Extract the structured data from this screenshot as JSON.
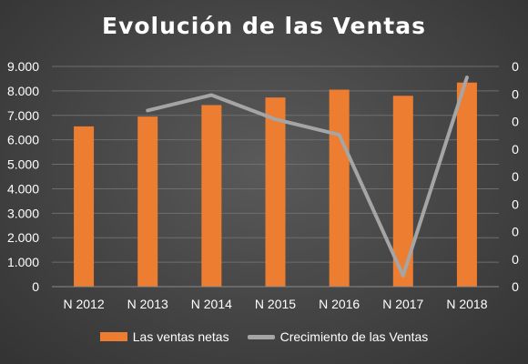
{
  "chart_data": {
    "type": "bar",
    "title": "Evolución de las Ventas",
    "categories": [
      "N 2012",
      "N 2013",
      "N 2014",
      "N 2015",
      "N 2016",
      "N 2017",
      "N 2018"
    ],
    "ylim": [
      0,
      9000
    ],
    "yticks": [
      "0",
      "1.000",
      "2.000",
      "3.000",
      "4.000",
      "5.000",
      "6.000",
      "7.000",
      "8.000",
      "9.000"
    ],
    "y2ticks": [
      "0",
      "0",
      "0",
      "0",
      "0",
      "0",
      "0",
      "0",
      "0"
    ],
    "grid": true,
    "legend_position": "bottom",
    "series": [
      {
        "name": "Las ventas netas",
        "type": "bar",
        "axis": "primary",
        "color": "#ed7d31",
        "values": [
          6550,
          6950,
          7420,
          7730,
          8050,
          7800,
          8340
        ]
      },
      {
        "name": "Crecimiento de las Ventas",
        "type": "line",
        "axis": "secondary",
        "color": "#a5a5a5",
        "values": [
          null,
          0.8,
          0.87,
          0.76,
          0.69,
          0.05,
          0.95
        ]
      }
    ]
  }
}
